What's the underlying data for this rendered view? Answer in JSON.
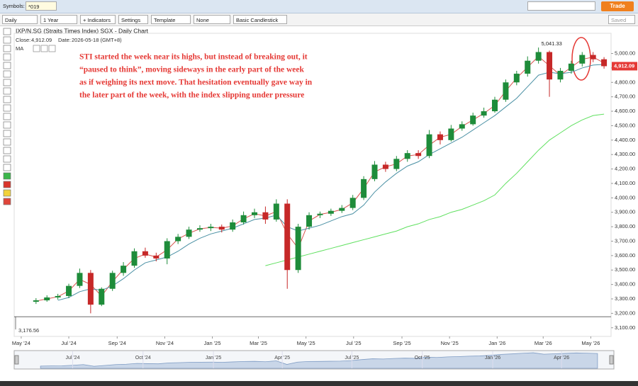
{
  "toolbar": {
    "symbols_label": "Symbols:",
    "symbol": "*019",
    "interval": "Daily",
    "range": "1 Year",
    "indicators": "+ Indicators",
    "settings": "Settings",
    "template": "Template",
    "none": "None",
    "style": "Basic Candlestick",
    "trade": "Trade",
    "saved": "Saved"
  },
  "chart_data": {
    "type": "candlestick",
    "title": "IXP/N.SG (Straits Times Index) SGX - Daily Chart",
    "close_label": "Close:",
    "close_value": "4,912.09",
    "date_label": "Date:",
    "date_value": "2026-05-18 (GMT+8)",
    "ma_label": "MA",
    "annotation": [
      "STI started the week near its highs, but instead of breaking out, it",
      "“paused to think”, moving sideways in the early part of the week",
      "as if weighing its next move. That hesitation eventually gave way in",
      "the later part of the week, with the index slipping under pressure"
    ],
    "up_color": "#1e8c3a",
    "down_color": "#c62828",
    "dates": [
      "2024-05-20",
      "2024-06-03",
      "2024-06-17",
      "2024-07-01",
      "2024-07-15",
      "2024-07-29",
      "2024-08-12",
      "2024-08-26",
      "2024-09-09",
      "2024-09-23",
      "2024-10-07",
      "2024-10-21",
      "2024-11-04",
      "2024-11-18",
      "2024-12-02",
      "2024-12-16",
      "2024-12-30",
      "2025-01-13",
      "2025-01-27",
      "2025-02-10",
      "2025-02-24",
      "2025-03-10",
      "2025-03-24",
      "2025-04-07",
      "2025-04-21",
      "2025-05-05",
      "2025-05-19",
      "2025-06-02",
      "2025-06-16",
      "2025-06-30",
      "2025-07-14",
      "2025-07-28",
      "2025-08-11",
      "2025-08-25",
      "2025-09-08",
      "2025-09-22",
      "2025-10-06",
      "2025-10-20",
      "2025-11-03",
      "2025-11-17",
      "2025-12-01",
      "2025-12-15",
      "2025-12-29",
      "2026-01-12",
      "2026-01-26",
      "2026-02-09",
      "2026-02-23",
      "2026-03-09",
      "2026-03-23",
      "2026-04-06",
      "2026-04-20",
      "2026-05-04",
      "2026-05-18"
    ],
    "open": [
      3280,
      3290,
      3310,
      3320,
      3390,
      3480,
      3260,
      3370,
      3480,
      3530,
      3630,
      3600,
      3580,
      3700,
      3730,
      3780,
      3790,
      3800,
      3780,
      3830,
      3880,
      3900,
      3850,
      3960,
      3500,
      3800,
      3880,
      3890,
      3910,
      3930,
      4000,
      4130,
      4230,
      4200,
      4270,
      4310,
      4290,
      4440,
      4400,
      4480,
      4510,
      4570,
      4600,
      4680,
      4800,
      4860,
      4950,
      5010,
      4820,
      4880,
      4930,
      4990,
      4960
    ],
    "high": [
      3305,
      3325,
      3335,
      3405,
      3510,
      3500,
      3380,
      3495,
      3555,
      3650,
      3655,
      3620,
      3720,
      3750,
      3800,
      3810,
      3820,
      3815,
      3850,
      3905,
      3925,
      3940,
      3990,
      3990,
      3820,
      3900,
      3905,
      3925,
      3950,
      4020,
      4150,
      4255,
      4250,
      4290,
      4330,
      4330,
      4470,
      4460,
      4505,
      4530,
      4590,
      4625,
      4700,
      4820,
      4880,
      4980,
      5041.33,
      5020,
      4900,
      4950,
      5010,
      5010,
      4975
    ],
    "low": [
      3265,
      3280,
      3295,
      3305,
      3375,
      3200,
      3250,
      3355,
      3460,
      3515,
      3585,
      3560,
      3540,
      3680,
      3715,
      3765,
      3770,
      3760,
      3765,
      3815,
      3860,
      3820,
      3835,
      3370,
      3480,
      3780,
      3860,
      3875,
      3895,
      3915,
      3985,
      4115,
      4180,
      4185,
      4250,
      4270,
      4275,
      4370,
      4390,
      4465,
      4500,
      4555,
      4590,
      4665,
      4780,
      4840,
      4930,
      4700,
      4800,
      4860,
      4910,
      4940,
      4895
    ],
    "close": [
      3290,
      3310,
      3320,
      3390,
      3480,
      3260,
      3370,
      3480,
      3530,
      3630,
      3600,
      3580,
      3700,
      3730,
      3780,
      3790,
      3800,
      3780,
      3830,
      3880,
      3900,
      3850,
      3960,
      3500,
      3800,
      3880,
      3890,
      3910,
      3930,
      4000,
      4130,
      4230,
      4200,
      4270,
      4310,
      4290,
      4440,
      4400,
      4480,
      4510,
      4570,
      4600,
      4680,
      4800,
      4860,
      4950,
      5010,
      4820,
      4880,
      4930,
      4990,
      4960,
      4912.09
    ],
    "ma": [
      {
        "color": "#d9534f",
        "values": [
          3285,
          3300,
          3315,
          3355,
          3435,
          3400,
          3320,
          3420,
          3505,
          3580,
          3610,
          3590,
          3640,
          3715,
          3755,
          3785,
          3795,
          3790,
          3805,
          3855,
          3890,
          3875,
          3905,
          3750,
          3650,
          3840,
          3885,
          3900,
          3920,
          3965,
          4065,
          4180,
          4215,
          4235,
          4290,
          4300,
          4365,
          4420,
          4440,
          4495,
          4540,
          4585,
          4640,
          4740,
          4830,
          4905,
          4980,
          4915,
          4850,
          4905,
          4960,
          4975,
          4935
        ]
      },
      {
        "color": "#4a90a4",
        "values": [
          null,
          null,
          3290,
          3310,
          3350,
          3370,
          3360,
          3390,
          3440,
          3500,
          3550,
          3570,
          3590,
          3630,
          3680,
          3720,
          3750,
          3770,
          3790,
          3820,
          3850,
          3860,
          3880,
          3800,
          3770,
          3790,
          3810,
          3840,
          3870,
          3890,
          3950,
          4040,
          4110,
          4170,
          4220,
          4250,
          4300,
          4340,
          4380,
          4420,
          4470,
          4520,
          4570,
          4630,
          4690,
          4770,
          4850,
          4870,
          4860,
          4870,
          4900,
          4920,
          4925
        ]
      },
      {
        "color": "#5fe05f",
        "values": [
          null,
          null,
          null,
          null,
          null,
          null,
          null,
          null,
          null,
          null,
          null,
          null,
          null,
          null,
          null,
          null,
          null,
          null,
          null,
          null,
          null,
          3530,
          3550,
          3570,
          3590,
          3610,
          3630,
          3650,
          3670,
          3690,
          3710,
          3730,
          3750,
          3770,
          3800,
          3820,
          3850,
          3870,
          3900,
          3920,
          3950,
          3980,
          4020,
          4100,
          4170,
          4250,
          4330,
          4400,
          4450,
          4500,
          4540,
          4570,
          4580
        ]
      }
    ],
    "annotations": [
      {
        "value": 5041.33,
        "label": "5,041.33"
      },
      {
        "value": 3176.56,
        "label": "3,176.56"
      }
    ],
    "last_price": {
      "value": 4912.09,
      "label": "4,912.09",
      "color": "#e53935"
    },
    "xlim": [
      "2024-04-22",
      "2026-05-27"
    ],
    "ylim": [
      3040,
      5140
    ],
    "xticks": [
      {
        "value": "2024-05-01",
        "label": "May '24"
      },
      {
        "value": "2024-07-01",
        "label": "Jul '24"
      },
      {
        "value": "2024-09-01",
        "label": "Sep '24"
      },
      {
        "value": "2024-11-01",
        "label": "Nov '24"
      },
      {
        "value": "2025-01-01",
        "label": "Jan '25"
      },
      {
        "value": "2025-03-01",
        "label": "Mar '25"
      },
      {
        "value": "2025-05-01",
        "label": "May '25"
      },
      {
        "value": "2025-07-01",
        "label": "Jul '25"
      },
      {
        "value": "2025-09-01",
        "label": "Sep '25"
      },
      {
        "value": "2025-11-01",
        "label": "Nov '25"
      },
      {
        "value": "2026-01-01",
        "label": "Jan '26"
      },
      {
        "value": "2026-03-01",
        "label": "Mar '26"
      },
      {
        "value": "2026-05-01",
        "label": "May '26"
      }
    ],
    "yticks": [
      {
        "value": 3100,
        "label": "3,100.00"
      },
      {
        "value": 3200,
        "label": "3,200.00"
      },
      {
        "value": 3300,
        "label": "3,300.00"
      },
      {
        "value": 3400,
        "label": "3,400.00"
      },
      {
        "value": 3500,
        "label": "3,500.00"
      },
      {
        "value": 3600,
        "label": "3,600.00"
      },
      {
        "value": 3700,
        "label": "3,700.00"
      },
      {
        "value": 3800,
        "label": "3,800.00"
      },
      {
        "value": 3900,
        "label": "3,900.00"
      },
      {
        "value": 4000,
        "label": "4,000.00"
      },
      {
        "value": 4100,
        "label": "4,100.00"
      },
      {
        "value": 4200,
        "label": "4,200.00"
      },
      {
        "value": 4300,
        "label": "4,300.00"
      },
      {
        "value": 4400,
        "label": "4,400.00"
      },
      {
        "value": 4500,
        "label": "4,500.00"
      },
      {
        "value": 4600,
        "label": "4,600.00"
      },
      {
        "value": 4700,
        "label": "4,700.00"
      },
      {
        "value": 4800,
        "label": "4,800.00"
      },
      {
        "value": 4900,
        "label": "4,900.00"
      },
      {
        "value": 5000,
        "label": "5,000.00"
      }
    ],
    "navigator": {
      "xlim": [
        "2024-04-23",
        "2026-06-01"
      ],
      "ylim": [
        3000,
        5200
      ],
      "xticks": [
        {
          "value": "2024-07-01",
          "label": "Jul '24"
        },
        {
          "value": "2024-10-01",
          "label": "Oct '24"
        },
        {
          "value": "2025-01-01",
          "label": "Jan '25"
        },
        {
          "value": "2025-04-01",
          "label": "Apr '25"
        },
        {
          "value": "2025-07-01",
          "label": "Jul '25"
        },
        {
          "value": "2025-10-01",
          "label": "Oct '25"
        },
        {
          "value": "2026-01-01",
          "label": "Jan '26"
        },
        {
          "value": "2026-04-01",
          "label": "Apr '26"
        }
      ]
    }
  }
}
